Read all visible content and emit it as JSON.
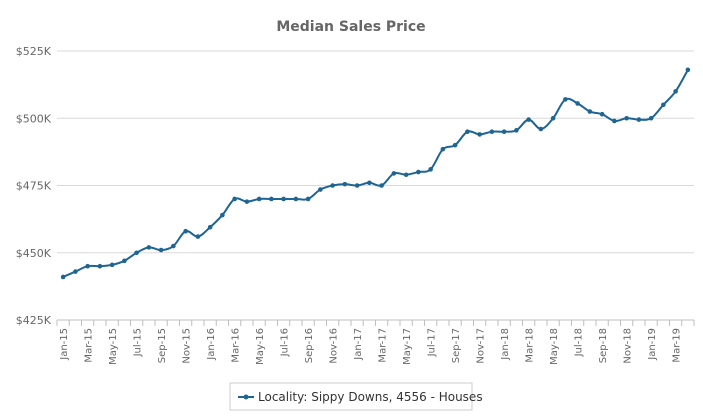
{
  "colors": {
    "series": "#1f6593",
    "grid": "#d9d9d9",
    "axis": "#bfbfbf",
    "text": "#666666"
  },
  "chart_data": {
    "type": "line",
    "title": "Median Sales Price",
    "xlabel": "",
    "ylabel": "",
    "ylim": [
      425000,
      525000
    ],
    "yticks": [
      425000,
      450000,
      475000,
      500000,
      525000
    ],
    "ytick_labels": [
      "$425K",
      "$450K",
      "$475K",
      "$500K",
      "$525K"
    ],
    "x": [
      "Jan-15",
      "Feb-15",
      "Mar-15",
      "Apr-15",
      "May-15",
      "Jun-15",
      "Jul-15",
      "Aug-15",
      "Sep-15",
      "Oct-15",
      "Nov-15",
      "Dec-15",
      "Jan-16",
      "Feb-16",
      "Mar-16",
      "Apr-16",
      "May-16",
      "Jun-16",
      "Jul-16",
      "Aug-16",
      "Sep-16",
      "Oct-16",
      "Nov-16",
      "Dec-16",
      "Jan-17",
      "Feb-17",
      "Mar-17",
      "Apr-17",
      "May-17",
      "Jun-17",
      "Jul-17",
      "Aug-17",
      "Sep-17",
      "Oct-17",
      "Nov-17",
      "Dec-17",
      "Jan-18",
      "Feb-18",
      "Mar-18",
      "Apr-18",
      "May-18",
      "Jun-18",
      "Jul-18",
      "Aug-18",
      "Sep-18",
      "Oct-18",
      "Nov-18",
      "Dec-18",
      "Jan-19",
      "Feb-19",
      "Mar-19",
      "Apr-19"
    ],
    "xtick_labels": [
      "Jan-15",
      "Mar-15",
      "May-15",
      "Jul-15",
      "Sep-15",
      "Nov-15",
      "Jan-16",
      "Mar-16",
      "May-16",
      "Jul-16",
      "Sep-16",
      "Nov-16",
      "Jan-17",
      "Mar-17",
      "May-17",
      "Jul-17",
      "Sep-17",
      "Nov-17",
      "Jan-18",
      "Mar-18",
      "May-18",
      "Jul-18",
      "Sep-18",
      "Nov-18",
      "Jan-19",
      "Mar-19"
    ],
    "series": [
      {
        "name": "Locality: Sippy Downs, 4556 - Houses",
        "values": [
          441000,
          443000,
          445000,
          445000,
          445500,
          447000,
          450000,
          452000,
          451000,
          452500,
          458000,
          456000,
          459500,
          464000,
          470000,
          469000,
          470000,
          470000,
          470000,
          470000,
          470000,
          473500,
          475000,
          475500,
          475000,
          476000,
          475000,
          479500,
          479000,
          480000,
          481000,
          488500,
          490000,
          495000,
          494000,
          495000,
          495000,
          495500,
          499500,
          496000,
          500000,
          507000,
          505500,
          502500,
          501500,
          499000,
          500000,
          499500,
          500000,
          505000,
          510000,
          518000
        ]
      }
    ],
    "legend": "bottom-center",
    "grid": true
  }
}
